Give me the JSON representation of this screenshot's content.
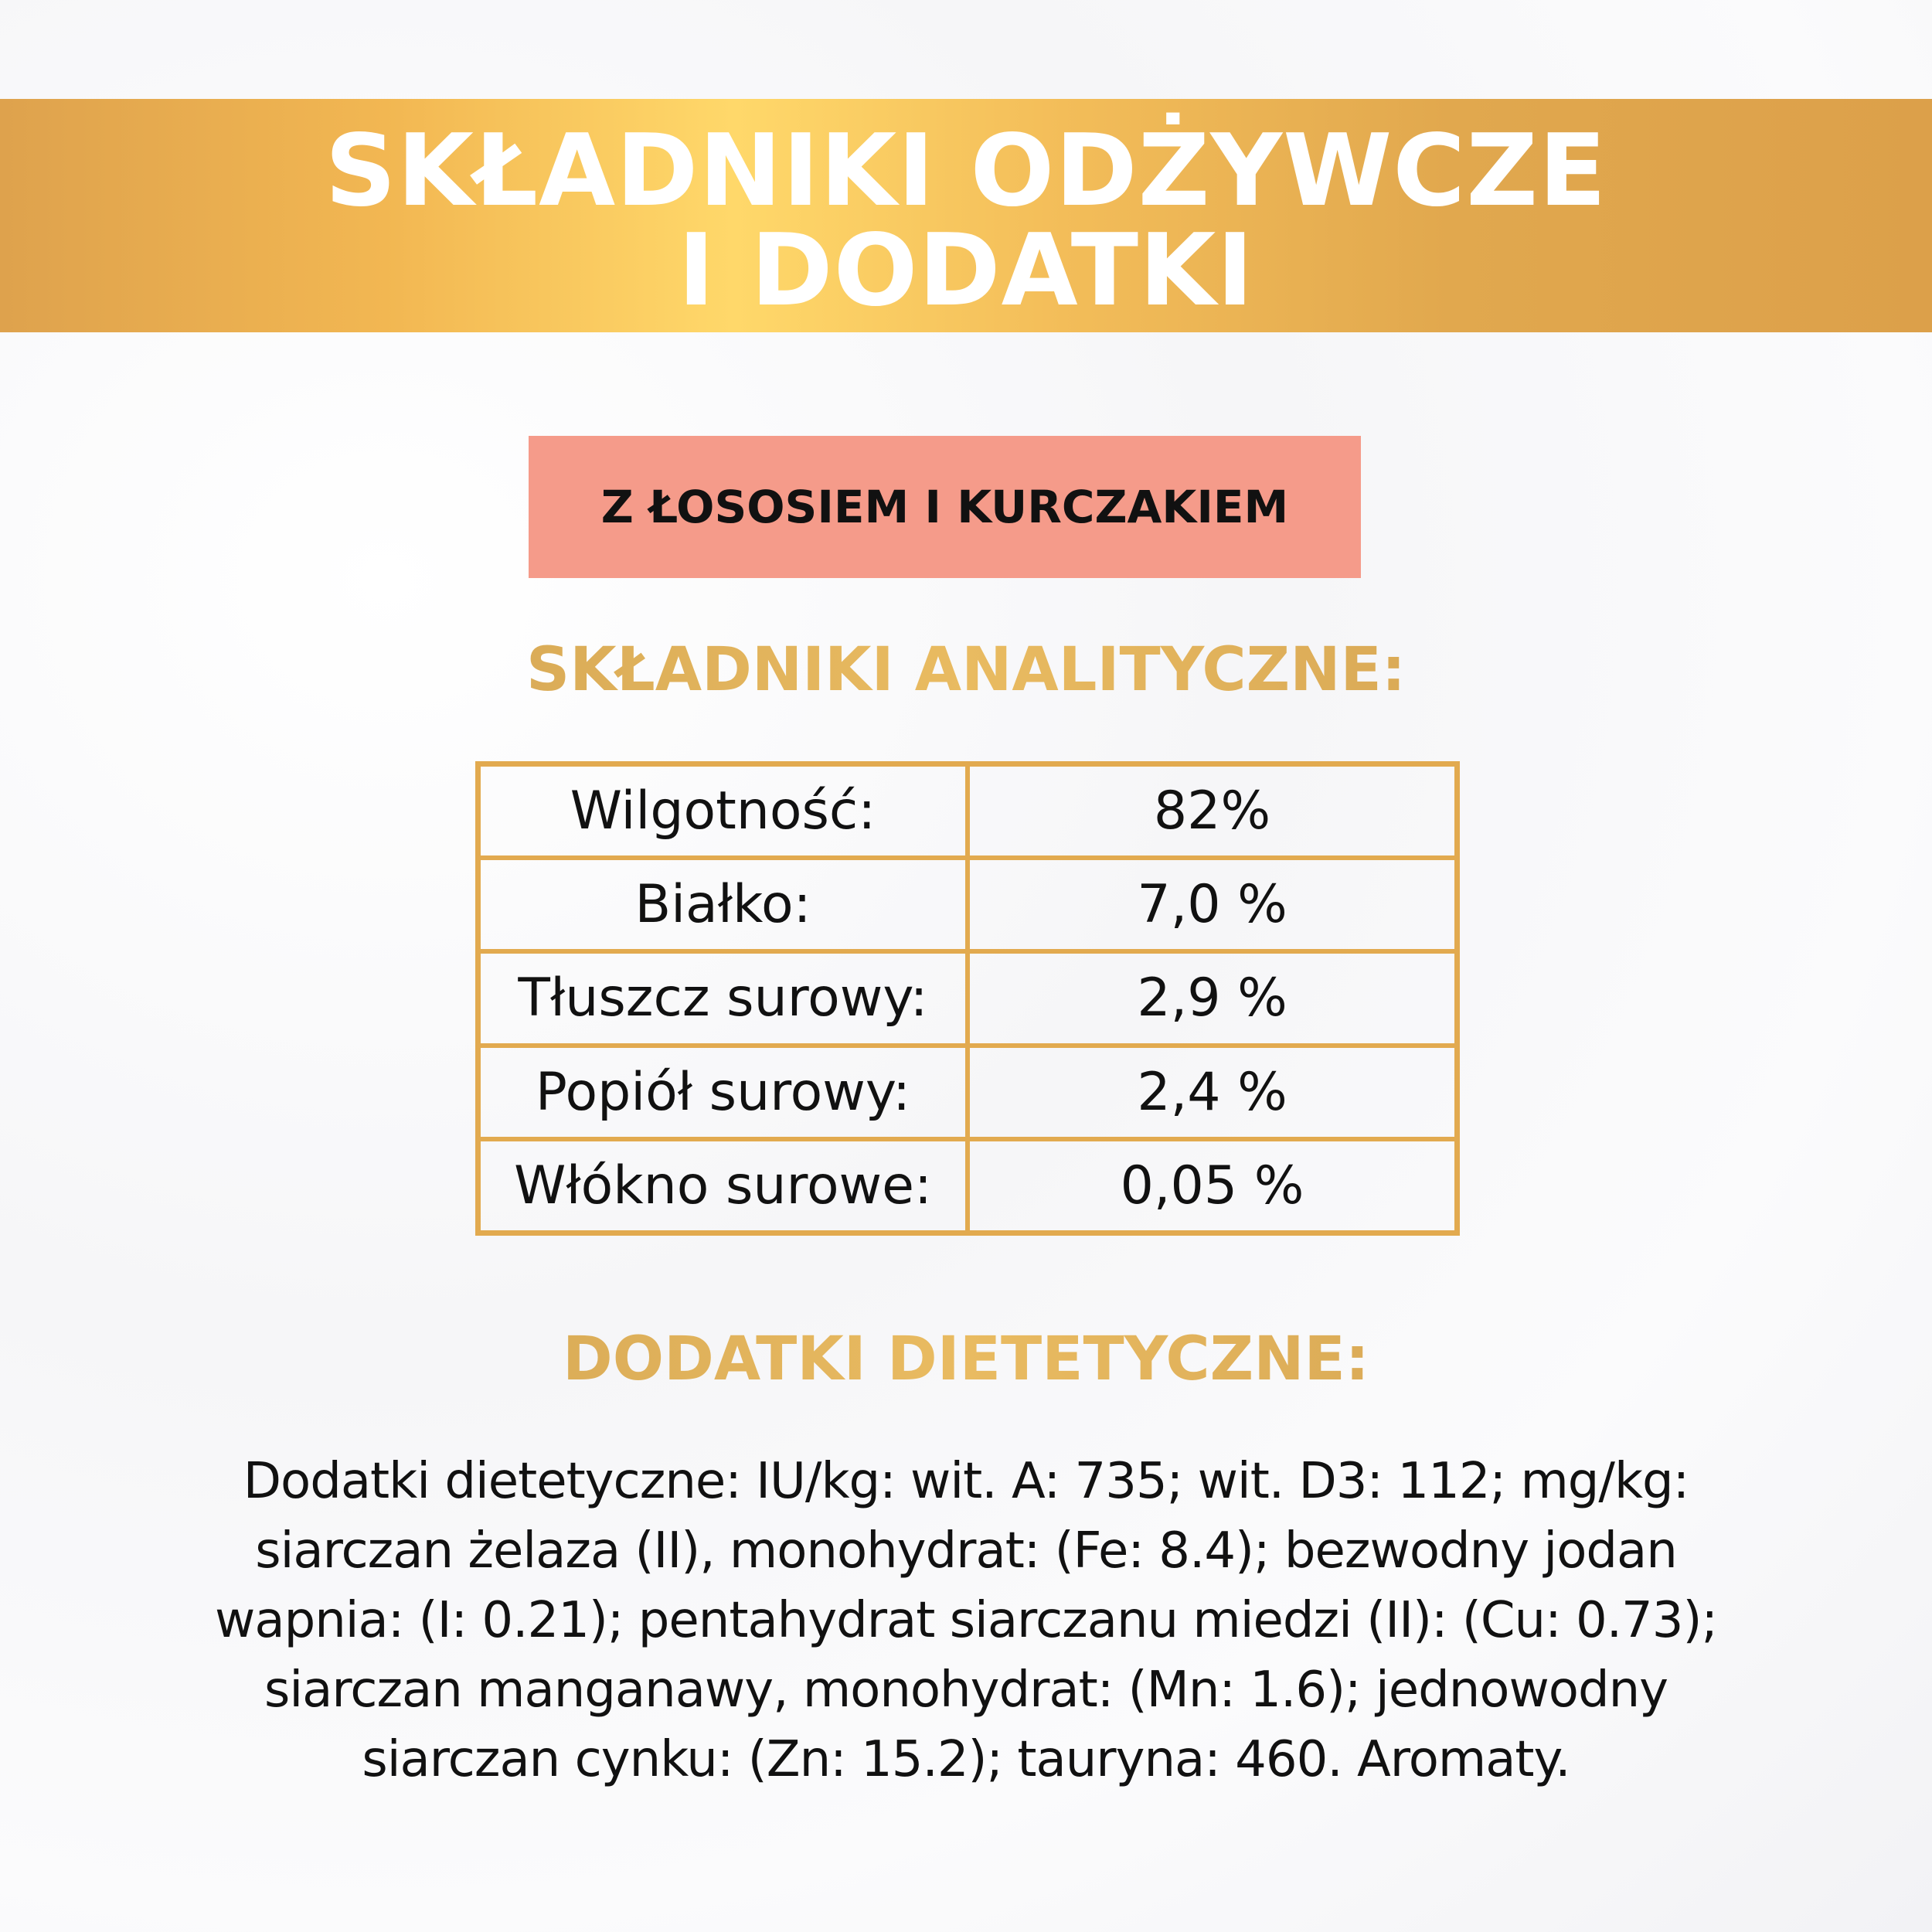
{
  "header": {
    "title_line1": "SKŁADNIKI ODŻYWCZE",
    "title_line2": "I DODATKI"
  },
  "variant": {
    "label": "Z ŁOSOSIEM I KURCZAKIEM",
    "color": "#f59b8a"
  },
  "analytical": {
    "heading": "SKŁADNIKI ANALITYCZNE:",
    "rows": [
      {
        "label": "Wilgotność:",
        "value": "82%"
      },
      {
        "label": "Białko:",
        "value": "7,0 %"
      },
      {
        "label": "Tłuszcz surowy:",
        "value": "2,9 %"
      },
      {
        "label": "Popiół surowy:",
        "value": "2,4 %"
      },
      {
        "label": "Włókno surowe:",
        "value": "0,05 %"
      }
    ]
  },
  "additives": {
    "heading": "DODATKI DIETETYCZNE:",
    "lines": [
      "Dodatki dietetyczne: IU/kg: wit. A: 735; wit. D3: 112; mg/kg:",
      "siarczan żelaza (II), monohydrat: (Fe: 8.4); bezwodny jodan",
      "wapnia: (I: 0.21); pentahydrat siarczanu miedzi (II): (Cu: 0.73);",
      "siarczan manganawy, monohydrat: (Mn: 1.6); jednowodny",
      "siarczan cynku: (Zn: 15.2); tauryna: 460. Aromaty."
    ]
  },
  "colors": {
    "gold": "#e2aa4f",
    "banner_highlight": "#ffd86a"
  }
}
